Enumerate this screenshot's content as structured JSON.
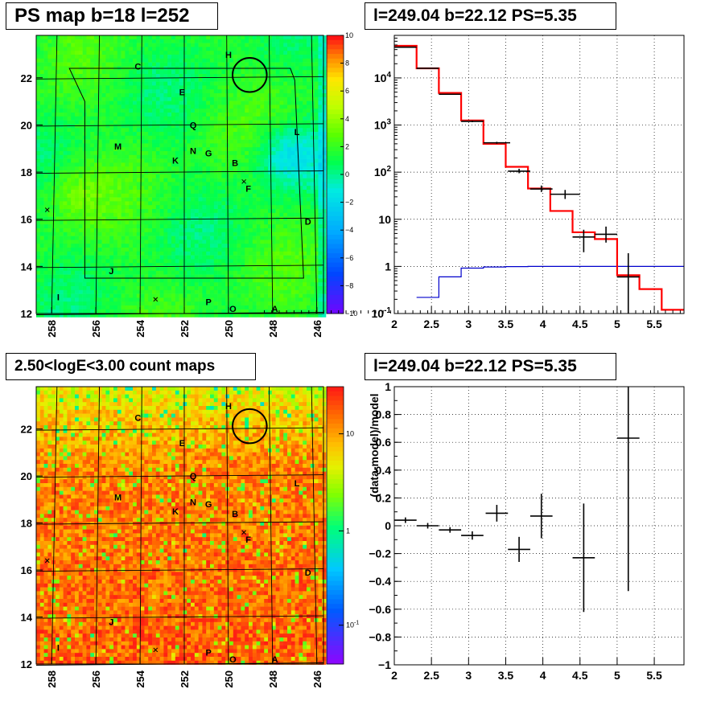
{
  "titles": {
    "map_top": "PS map b=18 l=252",
    "spectrum_top": "l=249.04 b=22.12 PS=5.35",
    "map_bottom": "2.50<logE<3.00 count maps",
    "residual_bottom": "l=249.04 b=22.12 PS=5.35"
  },
  "colors": {
    "data": "#000000",
    "model": "#ff0000",
    "background_model": "#0000cc",
    "grid": "#000000"
  },
  "chart_data": [
    {
      "type": "heatmap",
      "title": "PS map b=18 l=252",
      "xlabel": "",
      "ylabel": "",
      "x_ticks": [
        "258",
        "256",
        "254",
        "252",
        "250",
        "248",
        "246"
      ],
      "y_ticks": [
        "12",
        "14",
        "16",
        "18",
        "20",
        "22"
      ],
      "xlim": [
        258.7,
        245.7
      ],
      "ylim": [
        12,
        23.8
      ],
      "colorbar": {
        "scale": "linear",
        "range": [
          -10,
          10
        ],
        "ticks": [
          "10",
          "8",
          "6",
          "4",
          "2",
          "0",
          "−2",
          "−4",
          "−6",
          "−8",
          "−10"
        ]
      },
      "labels": [
        {
          "text": "H",
          "l": 250.0,
          "b": 22.98
        },
        {
          "text": "C",
          "l": 254.1,
          "b": 22.48
        },
        {
          "text": "E",
          "l": 252.1,
          "b": 21.4
        },
        {
          "text": "Q",
          "l": 251.6,
          "b": 20.0
        },
        {
          "text": "L",
          "l": 246.9,
          "b": 19.7
        },
        {
          "text": "M",
          "l": 255.0,
          "b": 19.1
        },
        {
          "text": "N",
          "l": 251.6,
          "b": 18.9
        },
        {
          "text": "G",
          "l": 250.9,
          "b": 18.8
        },
        {
          "text": "K",
          "l": 252.4,
          "b": 18.5
        },
        {
          "text": "B",
          "l": 249.7,
          "b": 18.4
        },
        {
          "text": "F",
          "l": 249.1,
          "b": 17.3
        },
        {
          "text": "D",
          "l": 246.4,
          "b": 15.9
        },
        {
          "text": "J",
          "l": 255.3,
          "b": 13.8
        },
        {
          "text": "I",
          "l": 257.7,
          "b": 12.7
        },
        {
          "text": "P",
          "l": 250.9,
          "b": 12.5
        },
        {
          "text": "O",
          "l": 249.8,
          "b": 12.2
        },
        {
          "text": "A",
          "l": 247.9,
          "b": 12.2
        }
      ],
      "cross_markers": [
        {
          "l": 249.3,
          "b": 17.6
        },
        {
          "l": 258.2,
          "b": 16.4
        },
        {
          "l": 253.3,
          "b": 12.6
        }
      ],
      "circle": {
        "l": 249.04,
        "b": 22.12,
        "radius": 0.5
      }
    },
    {
      "type": "line",
      "title": "l=249.04 b=22.12 PS=5.35",
      "xlabel": "",
      "ylabel": "",
      "xlim": [
        2,
        5.9
      ],
      "ylim": [
        0.1,
        80000
      ],
      "yscale": "log",
      "grid": true,
      "x_ticks": [
        "2",
        "2.5",
        "3",
        "3.5",
        "4",
        "4.5",
        "5",
        "5.5"
      ],
      "y_ticks": [
        "10^-1",
        "1",
        "10",
        "10^2",
        "10^3",
        "10^4"
      ],
      "series": [
        {
          "role": "data",
          "x": [
            2.15,
            2.45,
            2.75,
            3.05,
            3.38,
            3.68,
            3.98,
            4.3,
            4.55,
            4.85,
            5.15
          ],
          "x_err": [
            0.15,
            0.15,
            0.15,
            0.15,
            0.18,
            0.15,
            0.15,
            0.2,
            0.15,
            0.15,
            0.15
          ],
          "y": [
            45000,
            16000,
            4500,
            1200,
            420,
            105,
            44,
            34,
            4.2,
            4.8,
            0.6
          ],
          "y_low": [
            44000,
            15800,
            4400,
            1150,
            400,
            95,
            38,
            27,
            2,
            3.2,
            0.1
          ],
          "y_high": [
            46000,
            16200,
            4600,
            1250,
            440,
            118,
            52,
            42,
            6,
            7,
            1.9
          ]
        },
        {
          "role": "model",
          "step": true,
          "edges": [
            2.0,
            2.3,
            2.6,
            2.9,
            3.2,
            3.5,
            3.8,
            4.1,
            4.4,
            4.7,
            5.0,
            5.3,
            5.6,
            5.9
          ],
          "values": [
            48000,
            16000,
            4800,
            1250,
            400,
            130,
            45,
            15,
            5.3,
            3.8,
            0.65,
            0.33,
            0.12
          ]
        },
        {
          "role": "background_model",
          "step": true,
          "edges": [
            2.3,
            2.6,
            2.9,
            3.2,
            3.5,
            3.8,
            4.1,
            4.4,
            4.7,
            5.0,
            5.3,
            5.9
          ],
          "values": [
            0.22,
            0.6,
            0.92,
            0.97,
            0.99,
            1.0,
            1.0,
            1.0,
            1.0,
            1.0,
            1.0
          ]
        }
      ]
    },
    {
      "type": "heatmap",
      "title": "2.50<logE<3.00 count maps",
      "xlabel": "",
      "ylabel": "",
      "x_ticks": [
        "258",
        "256",
        "254",
        "252",
        "250",
        "248",
        "246"
      ],
      "y_ticks": [
        "12",
        "14",
        "16",
        "18",
        "20",
        "22"
      ],
      "xlim": [
        258.7,
        245.7
      ],
      "ylim": [
        12,
        23.8
      ],
      "colorbar": {
        "scale": "log",
        "ticks": [
          "10",
          "1",
          "10^-1"
        ]
      },
      "labels": [
        {
          "text": "H",
          "l": 250.0,
          "b": 22.98
        },
        {
          "text": "C",
          "l": 254.1,
          "b": 22.48
        },
        {
          "text": "E",
          "l": 252.1,
          "b": 21.4
        },
        {
          "text": "Q",
          "l": 251.6,
          "b": 20.0
        },
        {
          "text": "L",
          "l": 246.9,
          "b": 19.7
        },
        {
          "text": "M",
          "l": 255.0,
          "b": 19.1
        },
        {
          "text": "N",
          "l": 251.6,
          "b": 18.9
        },
        {
          "text": "G",
          "l": 250.9,
          "b": 18.8
        },
        {
          "text": "K",
          "l": 252.4,
          "b": 18.5
        },
        {
          "text": "B",
          "l": 249.7,
          "b": 18.4
        },
        {
          "text": "F",
          "l": 249.1,
          "b": 17.3
        },
        {
          "text": "D",
          "l": 246.4,
          "b": 15.9
        },
        {
          "text": "J",
          "l": 255.3,
          "b": 13.8
        },
        {
          "text": "I",
          "l": 257.7,
          "b": 12.7
        },
        {
          "text": "P",
          "l": 250.9,
          "b": 12.5
        },
        {
          "text": "O",
          "l": 249.8,
          "b": 12.2
        },
        {
          "text": "A",
          "l": 247.9,
          "b": 12.2
        }
      ],
      "cross_markers": [
        {
          "l": 249.3,
          "b": 17.6
        },
        {
          "l": 258.2,
          "b": 16.4
        },
        {
          "l": 253.3,
          "b": 12.6
        }
      ],
      "circle": {
        "l": 249.04,
        "b": 22.12,
        "radius": 0.5
      }
    },
    {
      "type": "scatter",
      "title": "l=249.04 b=22.12 PS=5.35",
      "xlabel": "",
      "ylabel": "(data-model)/model",
      "xlim": [
        2,
        5.9
      ],
      "ylim": [
        -1,
        1
      ],
      "grid": true,
      "x_ticks": [
        "2",
        "2.5",
        "3",
        "3.5",
        "4",
        "4.5",
        "5",
        "5.5"
      ],
      "y_ticks": [
        "−1",
        "−0.8",
        "−0.6",
        "−0.4",
        "−0.2",
        "0",
        "0.2",
        "0.4",
        "0.6",
        "0.8",
        "1"
      ],
      "series": [
        {
          "role": "data",
          "x": [
            2.15,
            2.45,
            2.75,
            3.05,
            3.38,
            3.68,
            3.98,
            4.55,
            5.15
          ],
          "x_err": [
            0.15,
            0.15,
            0.15,
            0.15,
            0.15,
            0.15,
            0.15,
            0.15,
            0.15
          ],
          "y": [
            0.04,
            0.0,
            -0.03,
            -0.07,
            0.09,
            -0.17,
            0.07,
            -0.23,
            0.63
          ],
          "y_err": [
            0.02,
            0.02,
            0.02,
            0.03,
            0.06,
            0.09,
            0.16,
            0.39,
            1.1
          ]
        }
      ]
    }
  ]
}
